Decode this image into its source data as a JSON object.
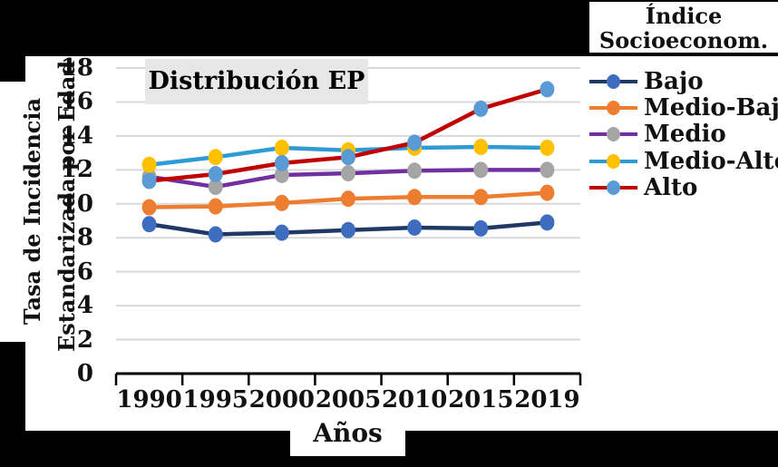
{
  "figure": {
    "plot_title": "Distribución EP",
    "x_axis_title": "Años",
    "y_title_line1": "Tasa de Incidencia",
    "y_title_line2": "Estandarizada por Edad",
    "legend_title_line1": "Índice",
    "legend_title_line2": "Socioeconom."
  },
  "chart_data": {
    "type": "line",
    "title": "Distribución EP",
    "xlabel": "Años",
    "ylabel": "Tasa de Incidencia Estandarizada por Edad",
    "legend_title": "Índice Socioeconom.",
    "legend_position": "right",
    "grid": true,
    "ylim": [
      0,
      18
    ],
    "yticks": [
      0,
      2,
      4,
      6,
      8,
      10,
      12,
      14,
      16,
      18
    ],
    "categories": [
      "1990",
      "1995",
      "2000",
      "2005",
      "2010",
      "2015",
      "2019"
    ],
    "series": [
      {
        "name": "Bajo",
        "line_color": "#1F3864",
        "marker_color": "#3E6DBF",
        "values": [
          8.8,
          8.2,
          8.3,
          8.45,
          8.6,
          8.55,
          8.9
        ]
      },
      {
        "name": "Medio-Bajo",
        "line_color": "#ED7D31",
        "marker_color": "#ED7D31",
        "values": [
          9.8,
          9.85,
          10.05,
          10.3,
          10.4,
          10.4,
          10.65
        ]
      },
      {
        "name": "Medio",
        "line_color": "#7030A0",
        "marker_color": "#A5A5A5",
        "values": [
          11.6,
          11.0,
          11.7,
          11.8,
          11.95,
          12.0,
          12.0
        ]
      },
      {
        "name": "Medio-Alto",
        "line_color": "#2E9BD5",
        "marker_color": "#FFC000",
        "values": [
          12.3,
          12.75,
          13.3,
          13.15,
          13.3,
          13.35,
          13.3
        ]
      },
      {
        "name": "Alto",
        "line_color": "#C00000",
        "marker_color": "#5B9BD5",
        "values": [
          11.35,
          11.75,
          12.4,
          12.75,
          13.6,
          15.6,
          16.75
        ]
      }
    ],
    "colors": {
      "gridline": "#D9D9D9",
      "axis": "#000000",
      "title_box_bg": "#E7E7E7",
      "frame_bg": "#000000",
      "panel_bg": "#FFFFFF"
    }
  }
}
